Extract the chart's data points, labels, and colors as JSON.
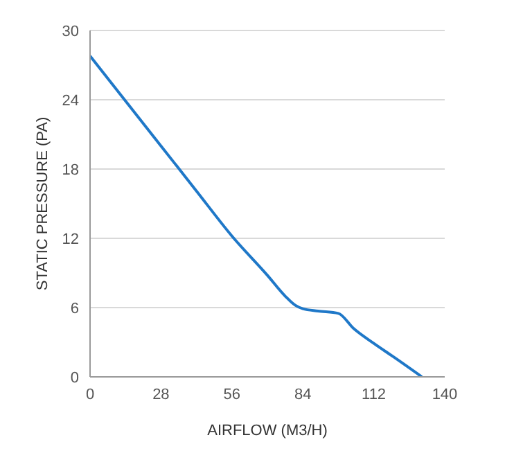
{
  "chart_data": {
    "type": "line",
    "xlabel": "AIRFLOW (M3/H)",
    "ylabel": "STATIC PRESSURE (PA)",
    "xlim": [
      0,
      140
    ],
    "xticks": [
      0,
      28,
      56,
      84,
      112,
      140
    ],
    "ylim": [
      0,
      30
    ],
    "yticks": [
      0,
      6,
      12,
      18,
      24,
      30
    ],
    "grid": "y",
    "marker": "none",
    "line_style": "solid",
    "series": [
      {
        "color": "#1f78c8",
        "x": [
          0,
          14,
          28,
          42,
          56,
          70,
          77,
          81,
          84,
          90,
          98,
          104,
          112,
          120,
          131
        ],
        "values": [
          27.8,
          23.9,
          20,
          16.1,
          12.2,
          8.8,
          7,
          6.2,
          5.9,
          5.7,
          5.5,
          4.2,
          2.9,
          1.7,
          0
        ]
      }
    ]
  }
}
